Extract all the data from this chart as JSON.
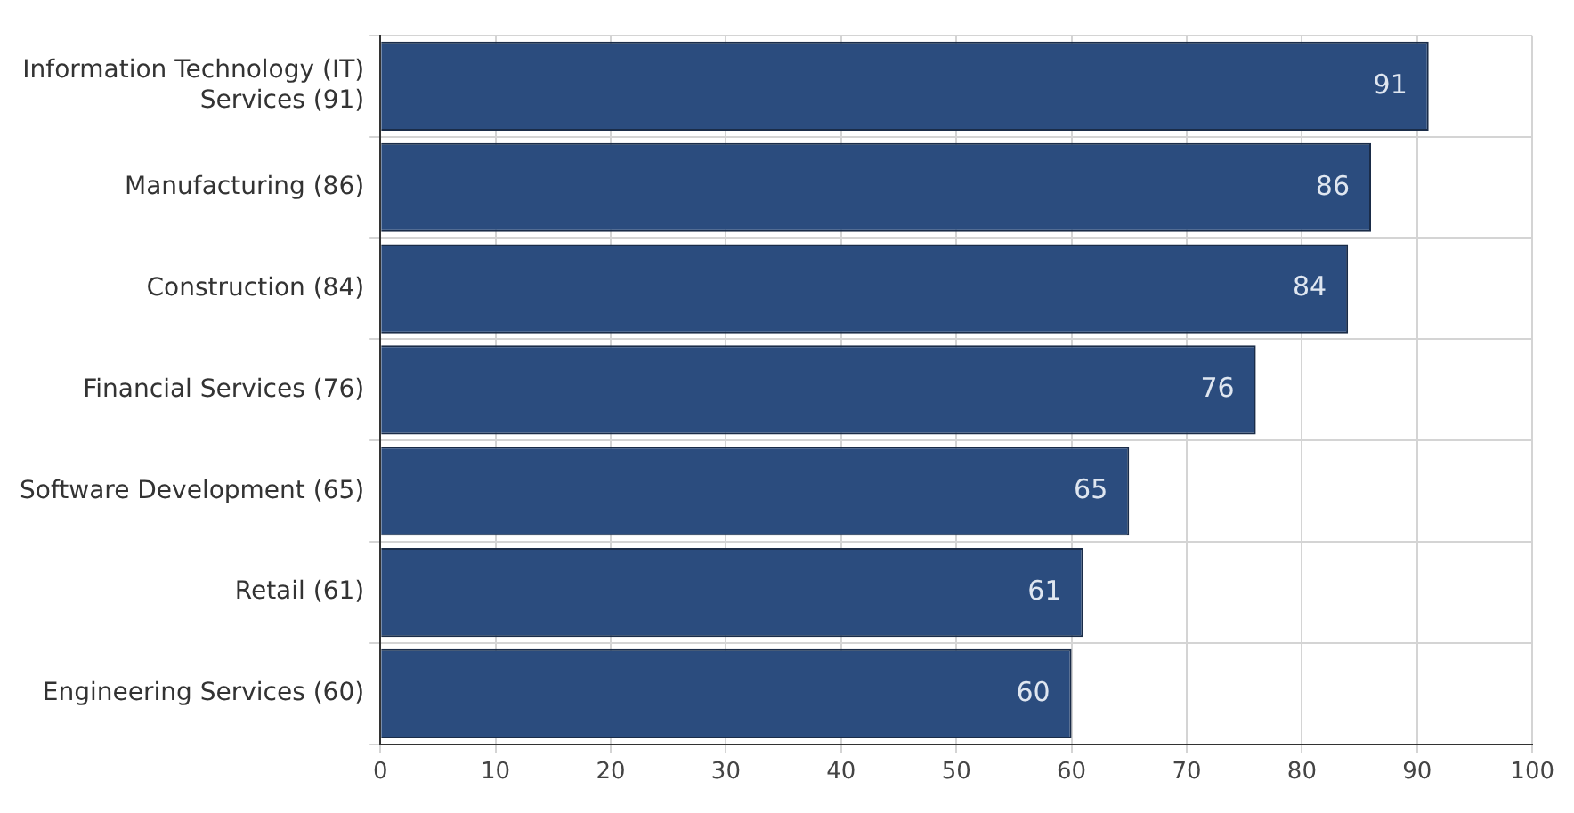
{
  "chart_data": {
    "type": "bar",
    "orientation": "horizontal",
    "categories": [
      "Information Technology (IT) Services (91)",
      "Manufacturing (86)",
      "Construction (84)",
      "Financial Services (76)",
      "Software Development (65)",
      "Retail (61)",
      "Engineering Services (60)"
    ],
    "values": [
      91,
      86,
      84,
      76,
      65,
      61,
      60
    ],
    "color": "#2b4c7e",
    "xlim": [
      0,
      100
    ],
    "xticks": [
      0,
      10,
      20,
      30,
      40,
      50,
      60,
      70,
      80,
      90,
      100
    ],
    "grid": true,
    "data_labels": true,
    "legend": false
  }
}
